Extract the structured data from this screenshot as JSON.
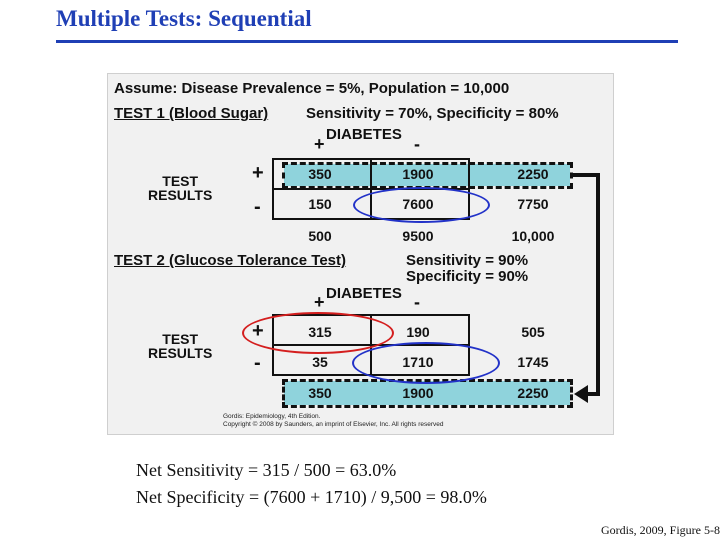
{
  "slide": {
    "title": "Multiple Tests: Sequential",
    "reference": "Gordis, 2009, Figure 5-8"
  },
  "figure": {
    "assume": "Assume: Disease Prevalence = 5%, Population = 10,000",
    "test1": {
      "name": "TEST 1 (Blood Sugar)",
      "stats": "Sensitivity = 70%, Specificity = 80%",
      "col_header": "DIABETES",
      "col_plus": "+",
      "col_minus": "-",
      "row_label_1": "TEST",
      "row_label_2": "RESULTS",
      "row_plus": "+",
      "row_minus": "-",
      "cells": {
        "pos_pos": "350",
        "pos_neg": "1900",
        "pos_total": "2250",
        "neg_pos": "150",
        "neg_neg": "7600",
        "neg_total": "7750",
        "tot_pos": "500",
        "tot_neg": "9500",
        "tot_total": "10,000"
      }
    },
    "test2": {
      "name": "TEST 2 (Glucose Tolerance Test)",
      "sensitivity": "Sensitivity = 90%",
      "specificity": "Specificity = 90%",
      "col_header": "DIABETES",
      "col_plus": "+",
      "col_minus": "-",
      "row_label_1": "TEST",
      "row_label_2": "RESULTS",
      "row_plus": "+",
      "row_minus": "-",
      "cells": {
        "pos_pos": "315",
        "pos_neg": "190",
        "pos_total": "505",
        "neg_pos": "35",
        "neg_neg": "1710",
        "neg_total": "1745",
        "tot_pos": "350",
        "tot_neg": "1900",
        "tot_total": "2250"
      }
    },
    "credit_line1": "Gordis: Epidemiology, 4th Edition.",
    "credit_line2": "Copyright © 2008 by Saunders, an imprint of Elsevier, Inc. All rights reserved"
  },
  "net": {
    "sensitivity": "Net Sensitivity  = 315 / 500 = 63.0%",
    "specificity": "Net Specificity = (7600 + 1710) / 9,500 = 98.0%"
  },
  "colors": {
    "title_blue": "#1f3fb5",
    "highlight_cyan": "#8fd3dc",
    "ellipse_blue": "#2232c8",
    "ellipse_red": "#d41e1e"
  }
}
